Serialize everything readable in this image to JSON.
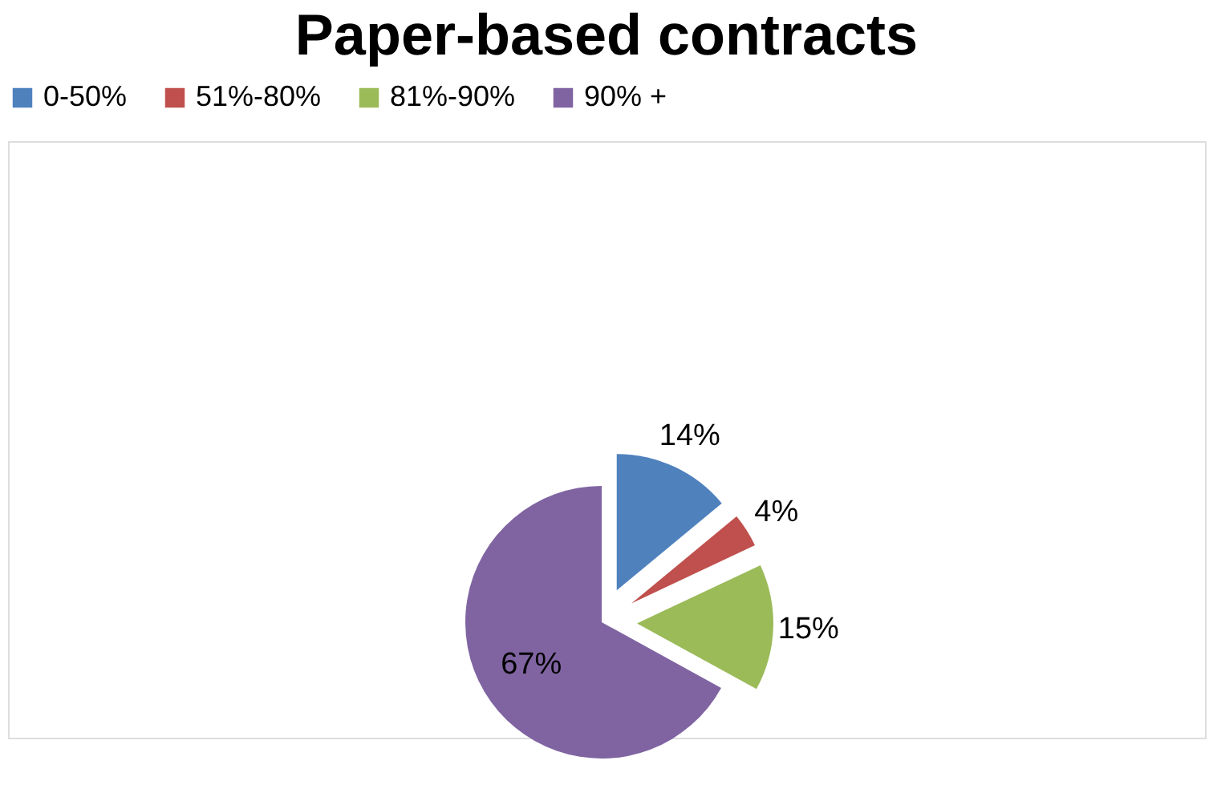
{
  "chart_data": {
    "type": "pie",
    "title": "Paper-based contracts",
    "categories": [
      "0-50%",
      "51%-80%",
      "81%-90%",
      "90% +"
    ],
    "values": [
      14,
      4,
      15,
      67
    ],
    "colors": [
      "#4f81bd",
      "#c0504d",
      "#9bbb59",
      "#8064a2"
    ],
    "value_labels": [
      "14%",
      "4%",
      "15%",
      "67%"
    ],
    "legend": "top"
  }
}
